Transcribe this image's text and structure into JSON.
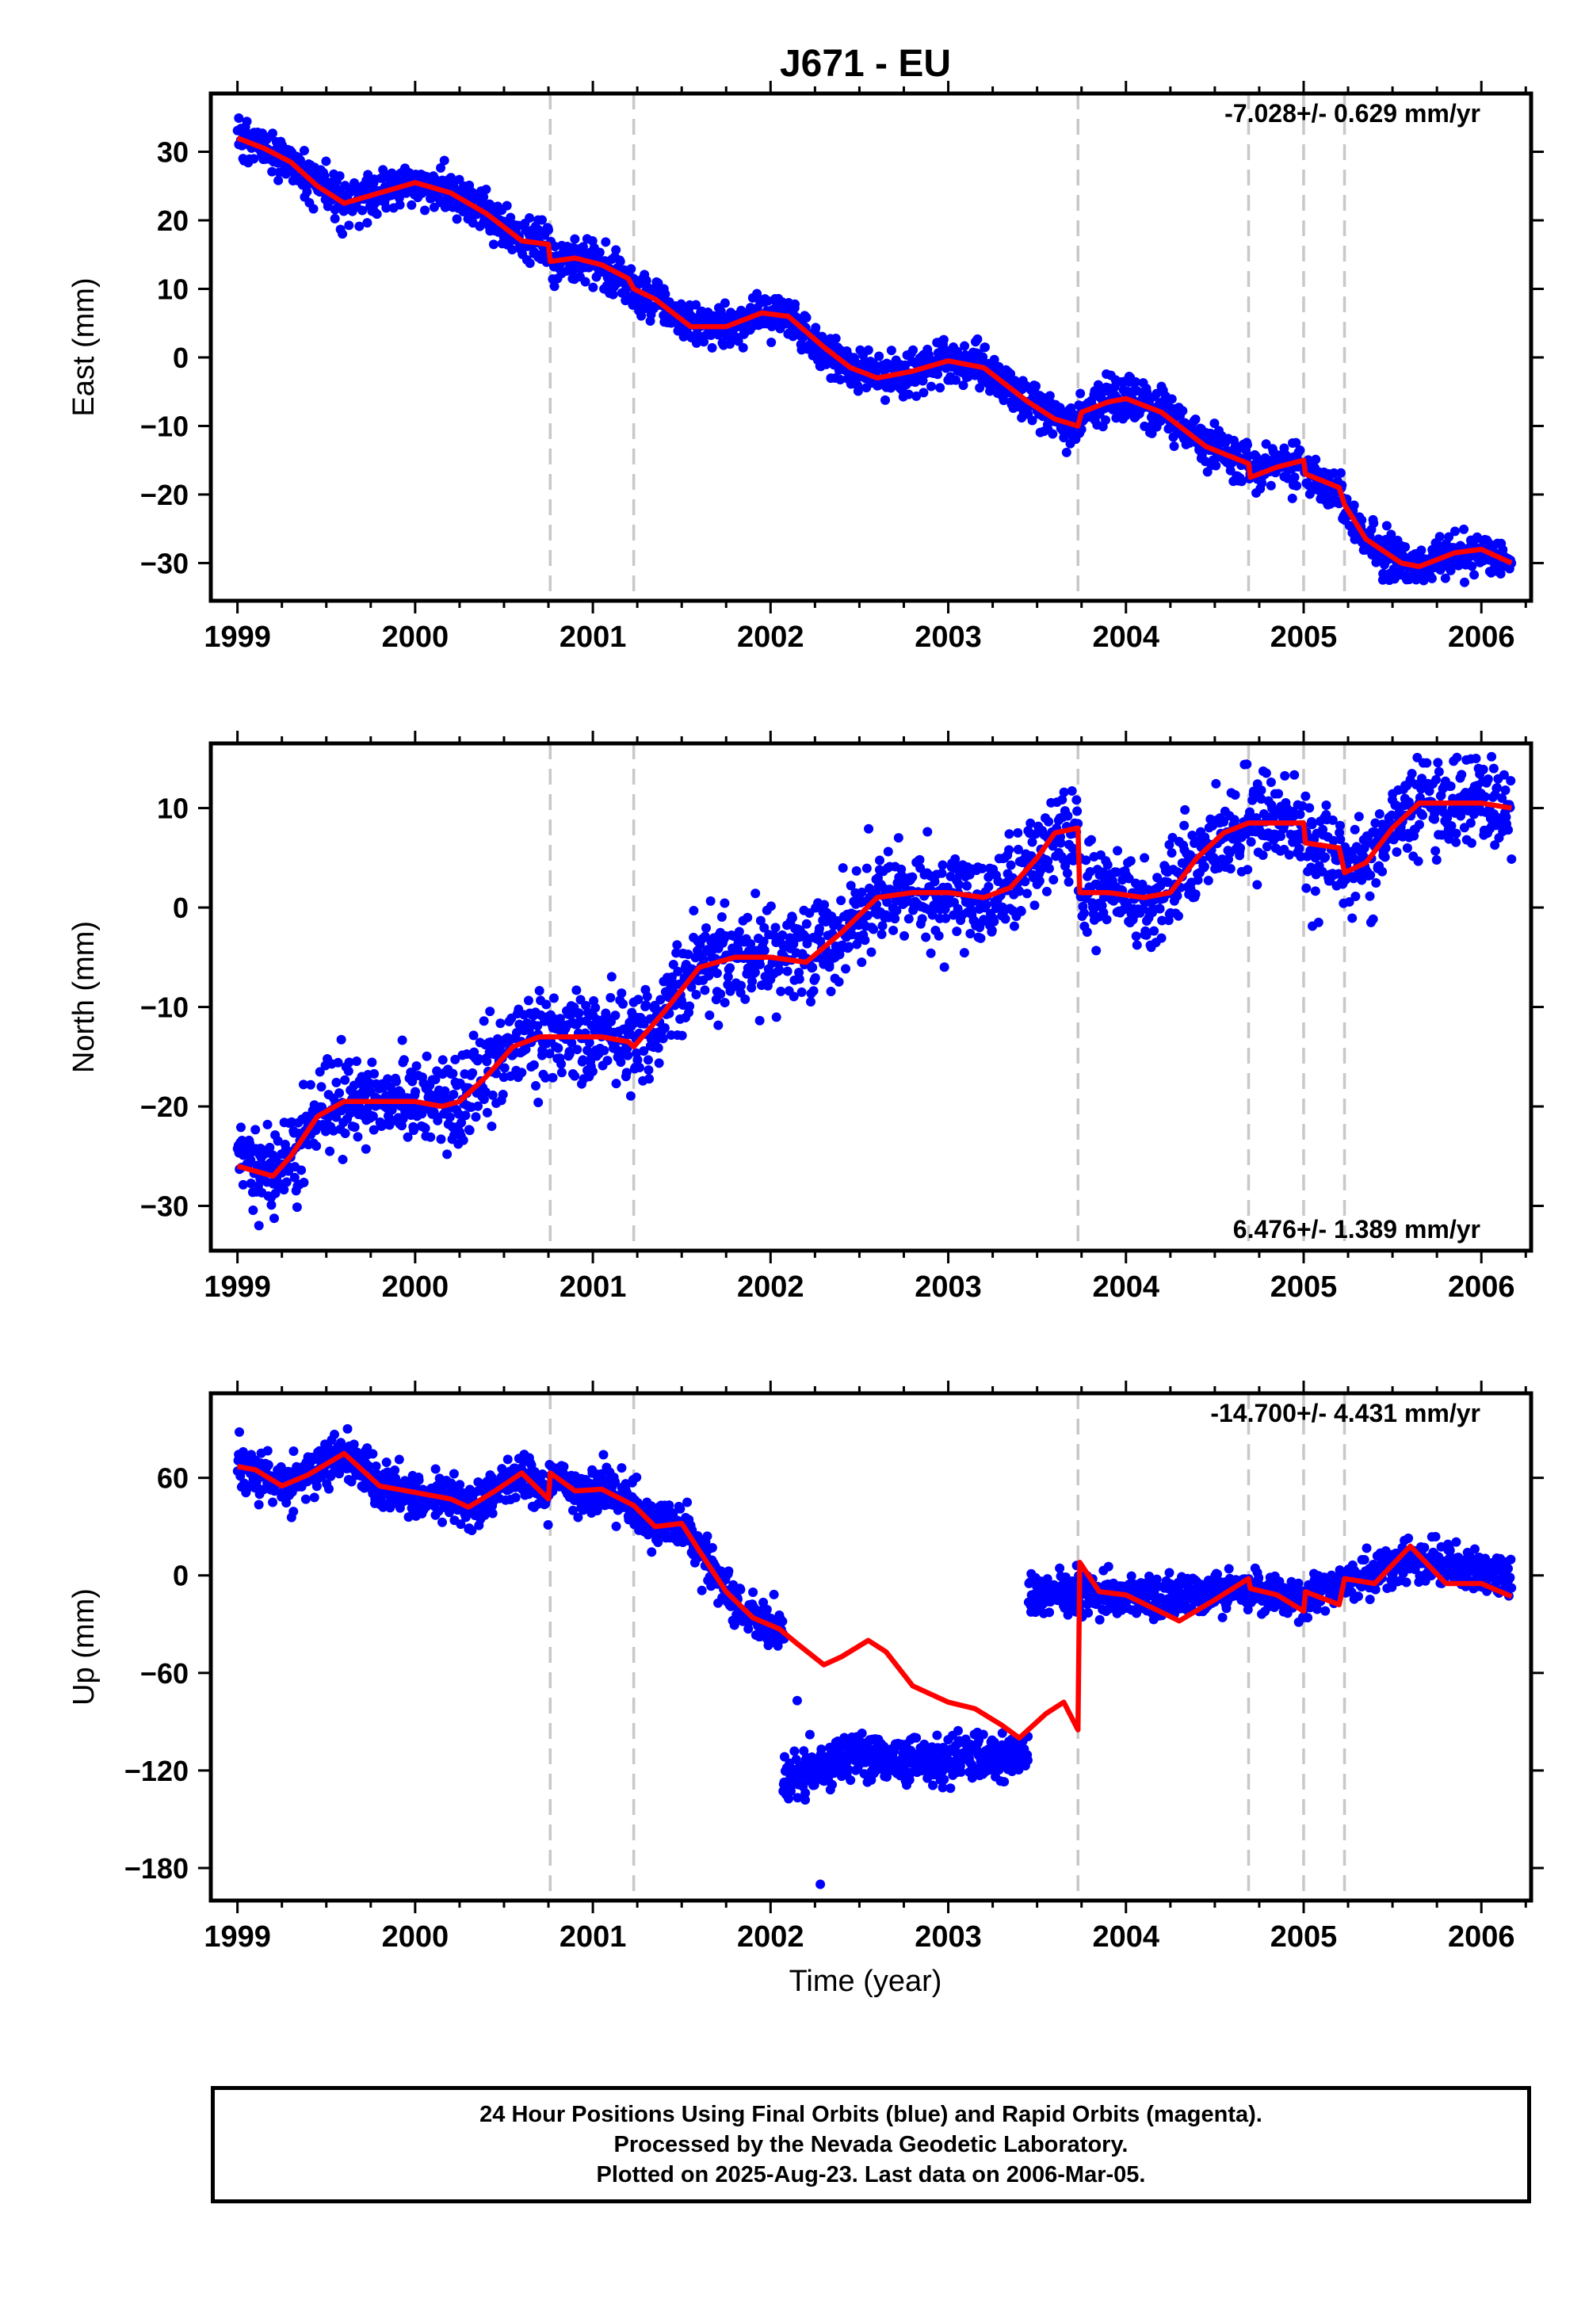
{
  "title": "J671 - EU",
  "xlabel": "Time (year)",
  "colors": {
    "data": "#0000ff",
    "model": "#ff0000",
    "steps": "#c8c8c8",
    "axes": "#000000"
  },
  "footer": {
    "line1": "24 Hour Positions Using Final Orbits (blue) and Rapid Orbits (magenta).",
    "line2": "Processed by the Nevada Geodetic Laboratory.",
    "line3": "Plotted on 2025-Aug-23. Last data on 2006-Mar-05."
  },
  "chart_data": [
    {
      "type": "scatter",
      "ylabel": "East (mm)",
      "rate": "-7.028+/- 0.629 mm/yr",
      "rate_position": "top-right",
      "xlim": [
        1998.85,
        2006.28
      ],
      "ylim": [
        -35.5,
        38.5
      ],
      "xticks": [
        1999,
        2000,
        2001,
        2002,
        2003,
        2004,
        2005,
        2006
      ],
      "yticks": [
        -30,
        -20,
        -10,
        0,
        10,
        20,
        30
      ],
      "step_epochs": [
        2000.76,
        2001.23,
        2003.73,
        2004.69,
        2005.0,
        2005.23
      ],
      "series": [
        {
          "kind": "model",
          "x": [
            1999.0,
            1999.15,
            1999.3,
            1999.45,
            1999.6,
            1999.8,
            2000.0,
            2000.2,
            2000.4,
            2000.6,
            2000.75,
            2000.76,
            2000.9,
            2001.05,
            2001.2,
            2001.23,
            2001.35,
            2001.55,
            2001.75,
            2001.95,
            2002.1,
            2002.3,
            2002.45,
            2002.6,
            2002.8,
            2003.0,
            2003.2,
            2003.45,
            2003.6,
            2003.73,
            2003.75,
            2003.9,
            2004.0,
            2004.2,
            2004.45,
            2004.69,
            2004.7,
            2004.85,
            2005.0,
            2005.01,
            2005.2,
            2005.23,
            2005.35,
            2005.55,
            2005.65,
            2005.85,
            2006.0,
            2006.17
          ],
          "y": [
            32.0,
            30.5,
            28.5,
            25.0,
            22.5,
            24.0,
            25.5,
            24.0,
            21.0,
            17.0,
            16.5,
            14.0,
            14.5,
            13.5,
            11.5,
            10.0,
            8.5,
            4.5,
            4.5,
            6.5,
            6.0,
            1.5,
            -1.5,
            -3.0,
            -2.0,
            -0.5,
            -1.5,
            -6.5,
            -9.0,
            -10.0,
            -8.0,
            -6.5,
            -6.0,
            -8.0,
            -13.0,
            -15.5,
            -17.5,
            -16.0,
            -15.0,
            -17.0,
            -19.0,
            -21.5,
            -26.5,
            -30.0,
            -30.5,
            -28.5,
            -28.0,
            -30.0
          ]
        },
        {
          "kind": "observed",
          "segments": [
            {
              "x0": 1999.0,
              "x1": 2006.17,
              "n": 2000,
              "noise": 1.6
            }
          ]
        }
      ]
    },
    {
      "type": "scatter",
      "ylabel": "North (mm)",
      "rate": "6.476+/- 1.389 mm/yr",
      "rate_position": "bottom-right",
      "xlim": [
        1998.85,
        2006.28
      ],
      "ylim": [
        -34.5,
        16.5
      ],
      "xticks": [
        1999,
        2000,
        2001,
        2002,
        2003,
        2004,
        2005,
        2006
      ],
      "yticks": [
        -30,
        -20,
        -10,
        0,
        10
      ],
      "step_epochs": [
        2000.76,
        2001.23,
        2003.73,
        2004.69,
        2005.0,
        2005.23
      ],
      "series": [
        {
          "kind": "model",
          "x": [
            1999.0,
            1999.1,
            1999.2,
            1999.3,
            1999.45,
            1999.6,
            1999.8,
            2000.0,
            2000.15,
            2000.25,
            2000.4,
            2000.55,
            2000.7,
            2000.76,
            2000.9,
            2001.05,
            2001.2,
            2001.23,
            2001.4,
            2001.6,
            2001.8,
            2002.0,
            2002.2,
            2002.4,
            2002.6,
            2002.8,
            2003.0,
            2003.2,
            2003.35,
            2003.5,
            2003.6,
            2003.73,
            2003.74,
            2003.9,
            2004.1,
            2004.25,
            2004.4,
            2004.55,
            2004.69,
            2004.7,
            2004.85,
            2005.0,
            2005.01,
            2005.2,
            2005.23,
            2005.35,
            2005.5,
            2005.65,
            2005.8,
            2006.0,
            2006.17
          ],
          "y": [
            -26.0,
            -26.5,
            -27.0,
            -25.0,
            -21.0,
            -19.5,
            -19.5,
            -19.5,
            -20.0,
            -19.5,
            -17.0,
            -14.0,
            -13.0,
            -13.0,
            -13.0,
            -13.0,
            -13.5,
            -14.0,
            -10.5,
            -6.0,
            -5.0,
            -5.0,
            -5.5,
            -2.5,
            1.0,
            1.5,
            1.5,
            1.0,
            2.0,
            5.0,
            7.5,
            8.0,
            1.5,
            1.5,
            1.0,
            1.5,
            5.0,
            7.5,
            8.5,
            8.5,
            8.5,
            8.5,
            6.5,
            6.0,
            3.5,
            4.5,
            8.0,
            10.5,
            10.5,
            10.5,
            10.0
          ]
        },
        {
          "kind": "observed",
          "segments": [
            {
              "x0": 1999.0,
              "x1": 2006.17,
              "n": 2000,
              "noise": 2.3
            }
          ]
        }
      ]
    },
    {
      "type": "scatter",
      "ylabel": "Up (mm)",
      "rate": "-14.700+/- 4.431 mm/yr",
      "rate_position": "top-right",
      "xlim": [
        1998.85,
        2006.28
      ],
      "ylim": [
        -200,
        112
      ],
      "xticks": [
        1999,
        2000,
        2001,
        2002,
        2003,
        2004,
        2005,
        2006
      ],
      "yticks": [
        -180,
        -120,
        -60,
        0,
        60
      ],
      "step_epochs": [
        2000.76,
        2001.23,
        2003.73,
        2004.69,
        2005.0,
        2005.23
      ],
      "series": [
        {
          "kind": "model",
          "x": [
            1999.0,
            1999.1,
            1999.25,
            1999.4,
            1999.6,
            1999.8,
            2000.0,
            2000.2,
            2000.3,
            2000.45,
            2000.6,
            2000.75,
            2000.76,
            2000.9,
            2001.05,
            2001.23,
            2001.35,
            2001.5,
            2001.6,
            2001.75,
            2001.9,
            2002.05,
            2002.15,
            2002.3,
            2002.4,
            2002.55,
            2002.65,
            2002.8,
            2003.0,
            2003.15,
            2003.3,
            2003.4,
            2003.55,
            2003.65,
            2003.73,
            2003.74,
            2003.85,
            2004.0,
            2004.15,
            2004.3,
            2004.5,
            2004.69,
            2004.7,
            2004.85,
            2005.0,
            2005.01,
            2005.2,
            2005.23,
            2005.4,
            2005.6,
            2005.8,
            2006.0,
            2006.17
          ],
          "y": [
            67,
            65,
            55,
            62,
            75,
            55,
            51,
            47,
            42,
            52,
            63,
            47,
            63,
            52,
            53,
            43,
            30,
            32,
            15,
            -10,
            -26,
            -33,
            -42,
            -55,
            -50,
            -40,
            -47,
            -68,
            -78,
            -82,
            -92,
            -100,
            -85,
            -78,
            -95,
            8,
            -10,
            -12,
            -20,
            -28,
            -15,
            -2,
            -8,
            -12,
            -22,
            -10,
            -18,
            -2,
            -5,
            18,
            -5,
            -5,
            -13
          ]
        },
        {
          "kind": "observed",
          "segments": [
            {
              "x0": 1999.0,
              "x1": 2002.08,
              "n": 1000,
              "noise": 7
            },
            {
              "x0": 2002.07,
              "x1": 2003.45,
              "n": 520,
              "noise": 7,
              "level": [
                [
                  2002.07,
                  -125
                ],
                [
                  2002.25,
                  -120
                ],
                [
                  2002.5,
                  -110
                ],
                [
                  2002.8,
                  -115
                ],
                [
                  2003.1,
                  -112
                ],
                [
                  2003.45,
                  -110
                ]
              ]
            },
            {
              "x0": 2003.45,
              "x1": 2006.17,
              "n": 880,
              "noise": 6,
              "level": [
                [
                  2003.45,
                  -10
                ],
                [
                  2003.8,
                  -12
                ],
                [
                  2004.2,
                  -14
                ],
                [
                  2004.7,
                  -10
                ],
                [
                  2005.0,
                  -14
                ],
                [
                  2005.3,
                  -2
                ],
                [
                  2005.6,
                  10
                ],
                [
                  2006.17,
                  -2
                ]
              ]
            }
          ],
          "outliers": [
            [
              2002.28,
              -190
            ],
            [
              2002.15,
              -77
            ]
          ]
        }
      ]
    }
  ]
}
